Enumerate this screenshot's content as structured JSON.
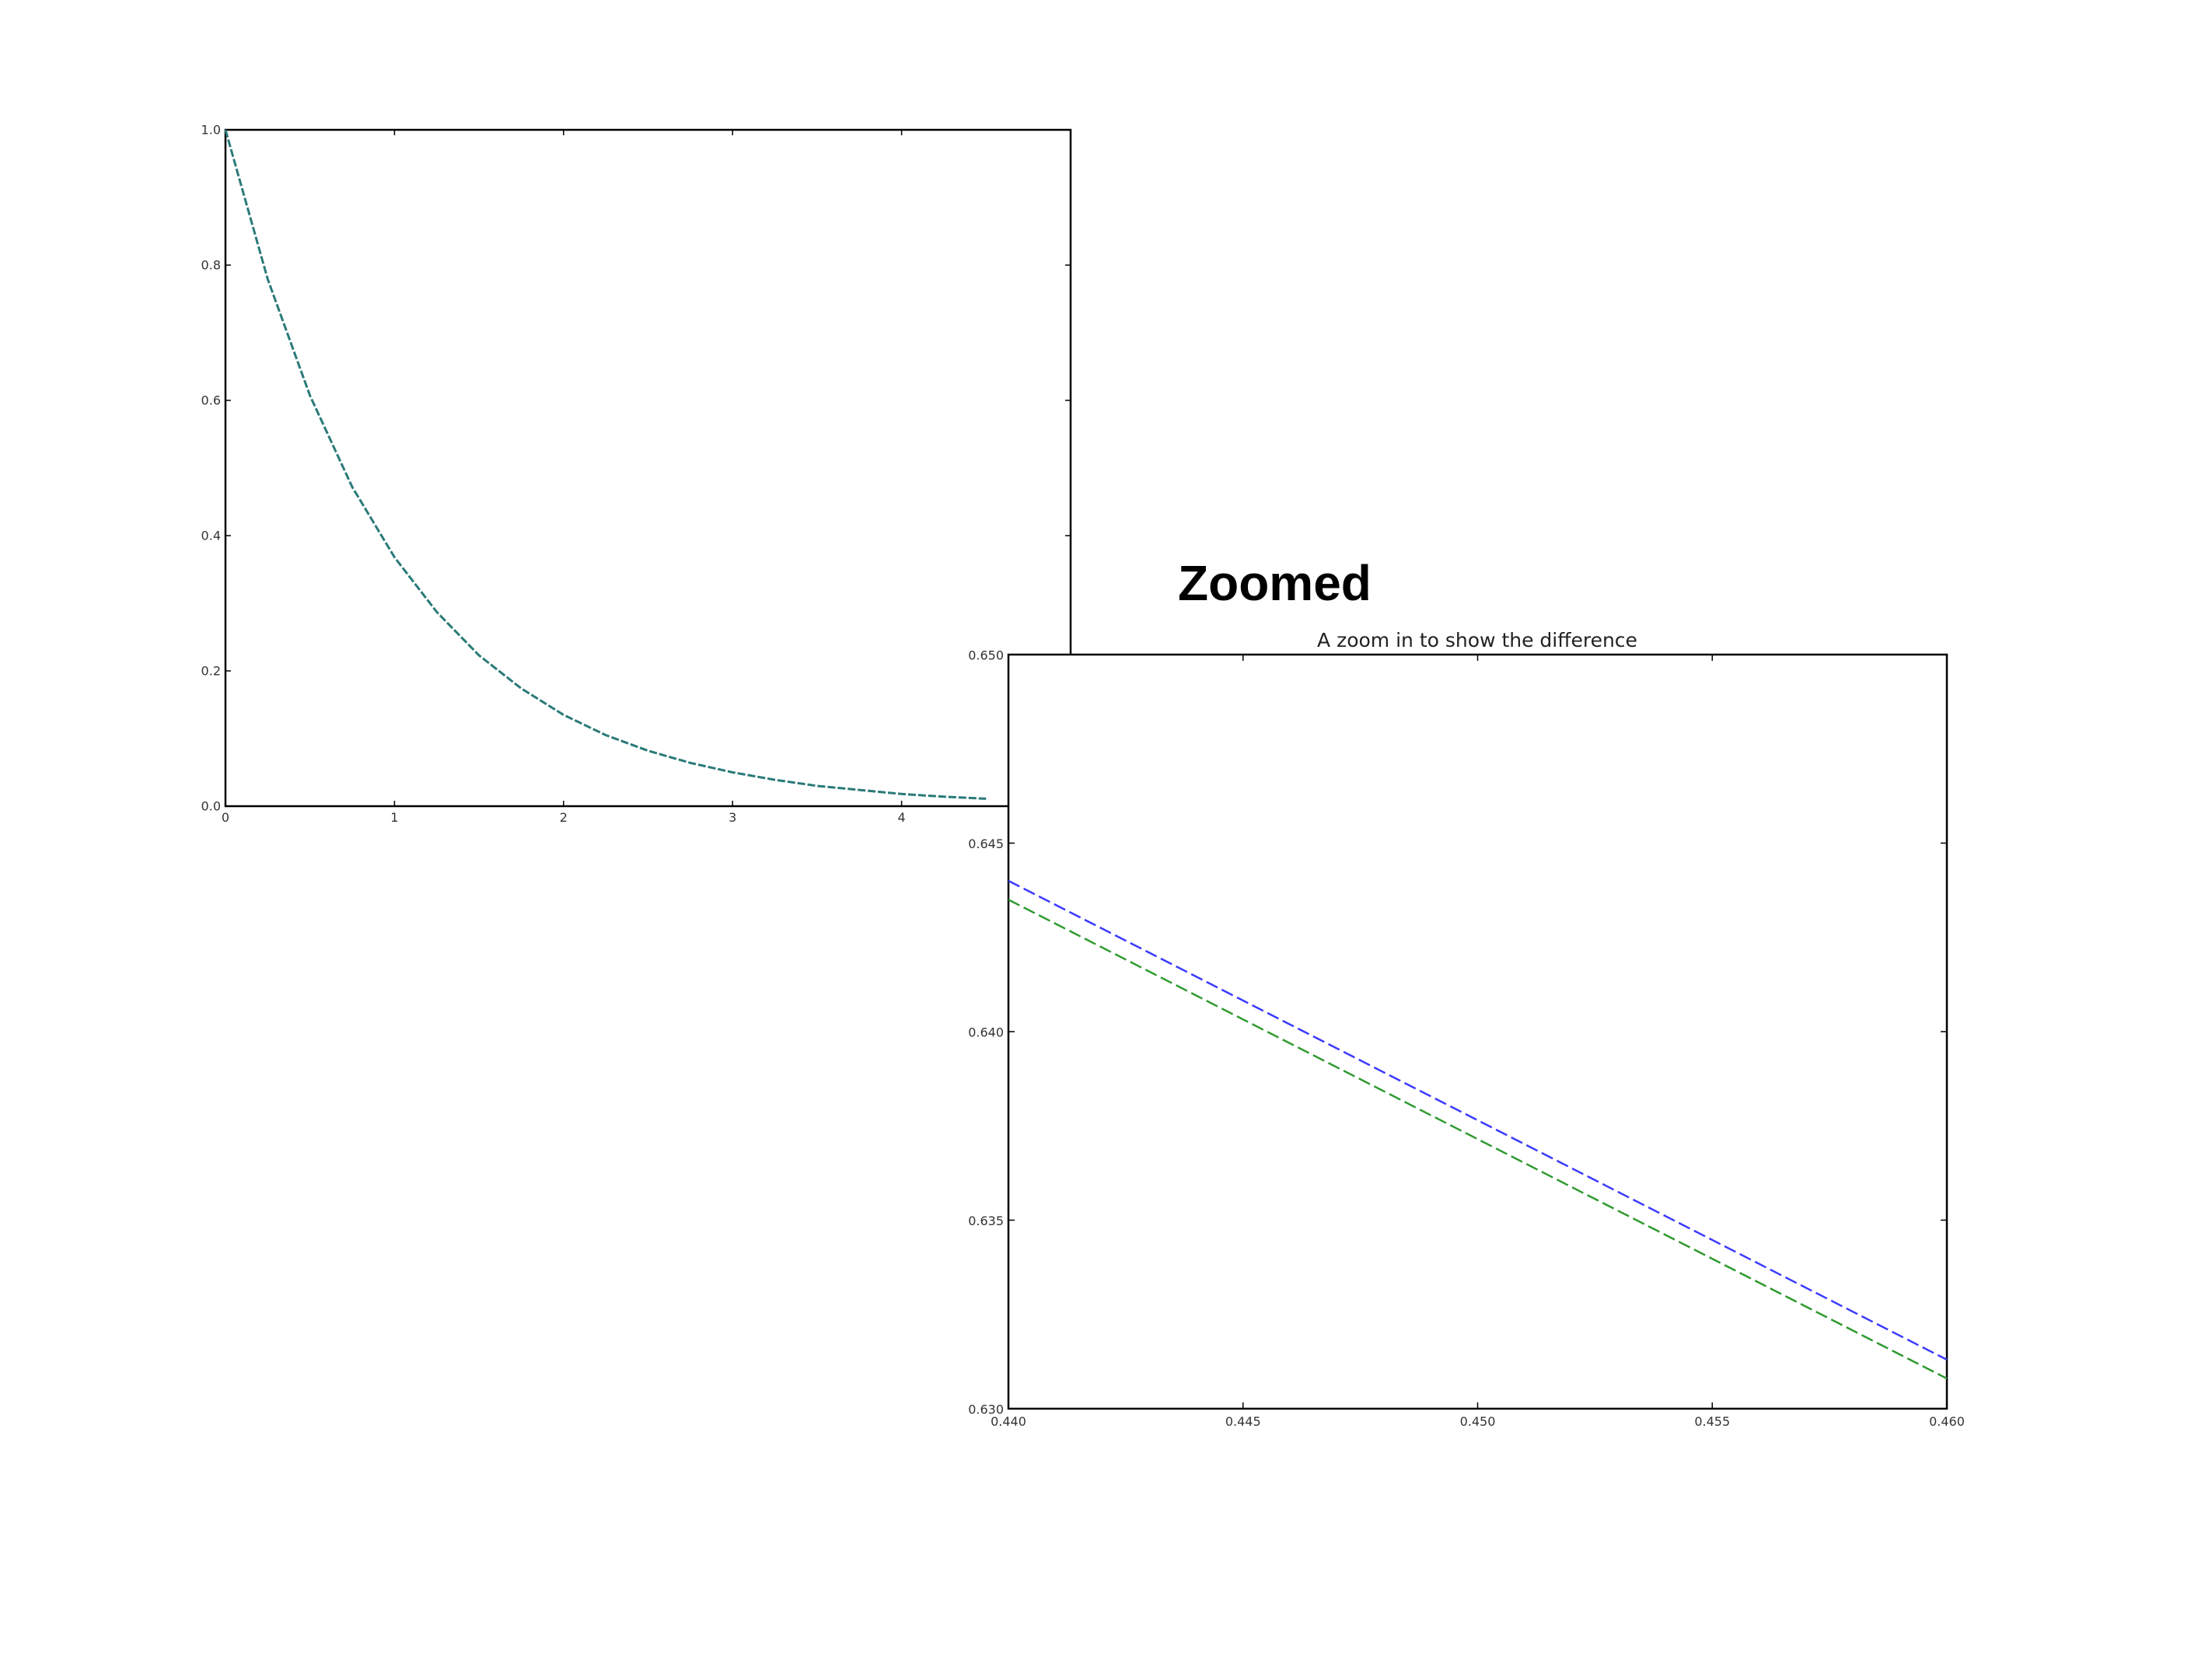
{
  "overlay_label": "Zoomed",
  "chart_data": [
    {
      "type": "line",
      "title": "",
      "xlabel": "",
      "ylabel": "",
      "xlim": [
        0,
        5
      ],
      "ylim": [
        0.0,
        1.0
      ],
      "x_ticks": [
        0,
        1,
        2,
        3,
        4
      ],
      "x_tick_labels": [
        "0",
        "1",
        "2",
        "3",
        "4"
      ],
      "y_ticks": [
        0.0,
        0.2,
        0.4,
        0.6,
        0.8,
        1.0
      ],
      "y_tick_labels": [
        "0.0",
        "0.2",
        "0.4",
        "0.6",
        "0.8",
        "1.0"
      ],
      "grid": false,
      "x": [
        0,
        0.25,
        0.5,
        0.75,
        1.0,
        1.25,
        1.5,
        1.75,
        2.0,
        2.25,
        2.5,
        2.75,
        3.0,
        3.25,
        3.5,
        3.75,
        4.0,
        4.25,
        4.5
      ],
      "series": [
        {
          "color": "#2a7a78",
          "dash": "dashed",
          "values": [
            1.0,
            0.779,
            0.607,
            0.472,
            0.368,
            0.287,
            0.223,
            0.174,
            0.135,
            0.105,
            0.082,
            0.064,
            0.05,
            0.039,
            0.03,
            0.024,
            0.018,
            0.014,
            0.011
          ]
        }
      ]
    },
    {
      "type": "line",
      "title": "A zoom in to show the difference",
      "xlabel": "",
      "ylabel": "",
      "xlim": [
        0.44,
        0.46
      ],
      "ylim": [
        0.63,
        0.65
      ],
      "x_ticks": [
        0.44,
        0.445,
        0.45,
        0.455,
        0.46
      ],
      "x_tick_labels": [
        "0.440",
        "0.445",
        "0.450",
        "0.455",
        "0.460"
      ],
      "y_ticks": [
        0.63,
        0.635,
        0.64,
        0.645,
        0.65
      ],
      "y_tick_labels": [
        "0.630",
        "0.635",
        "0.640",
        "0.645",
        "0.650"
      ],
      "grid": false,
      "x": [
        0.44,
        0.46
      ],
      "series": [
        {
          "color": "#3b3bff",
          "dash": "dashed",
          "values": [
            0.644,
            0.6313
          ]
        },
        {
          "color": "#2f9a2f",
          "dash": "dashed",
          "values": [
            0.6435,
            0.6308
          ]
        }
      ]
    }
  ]
}
